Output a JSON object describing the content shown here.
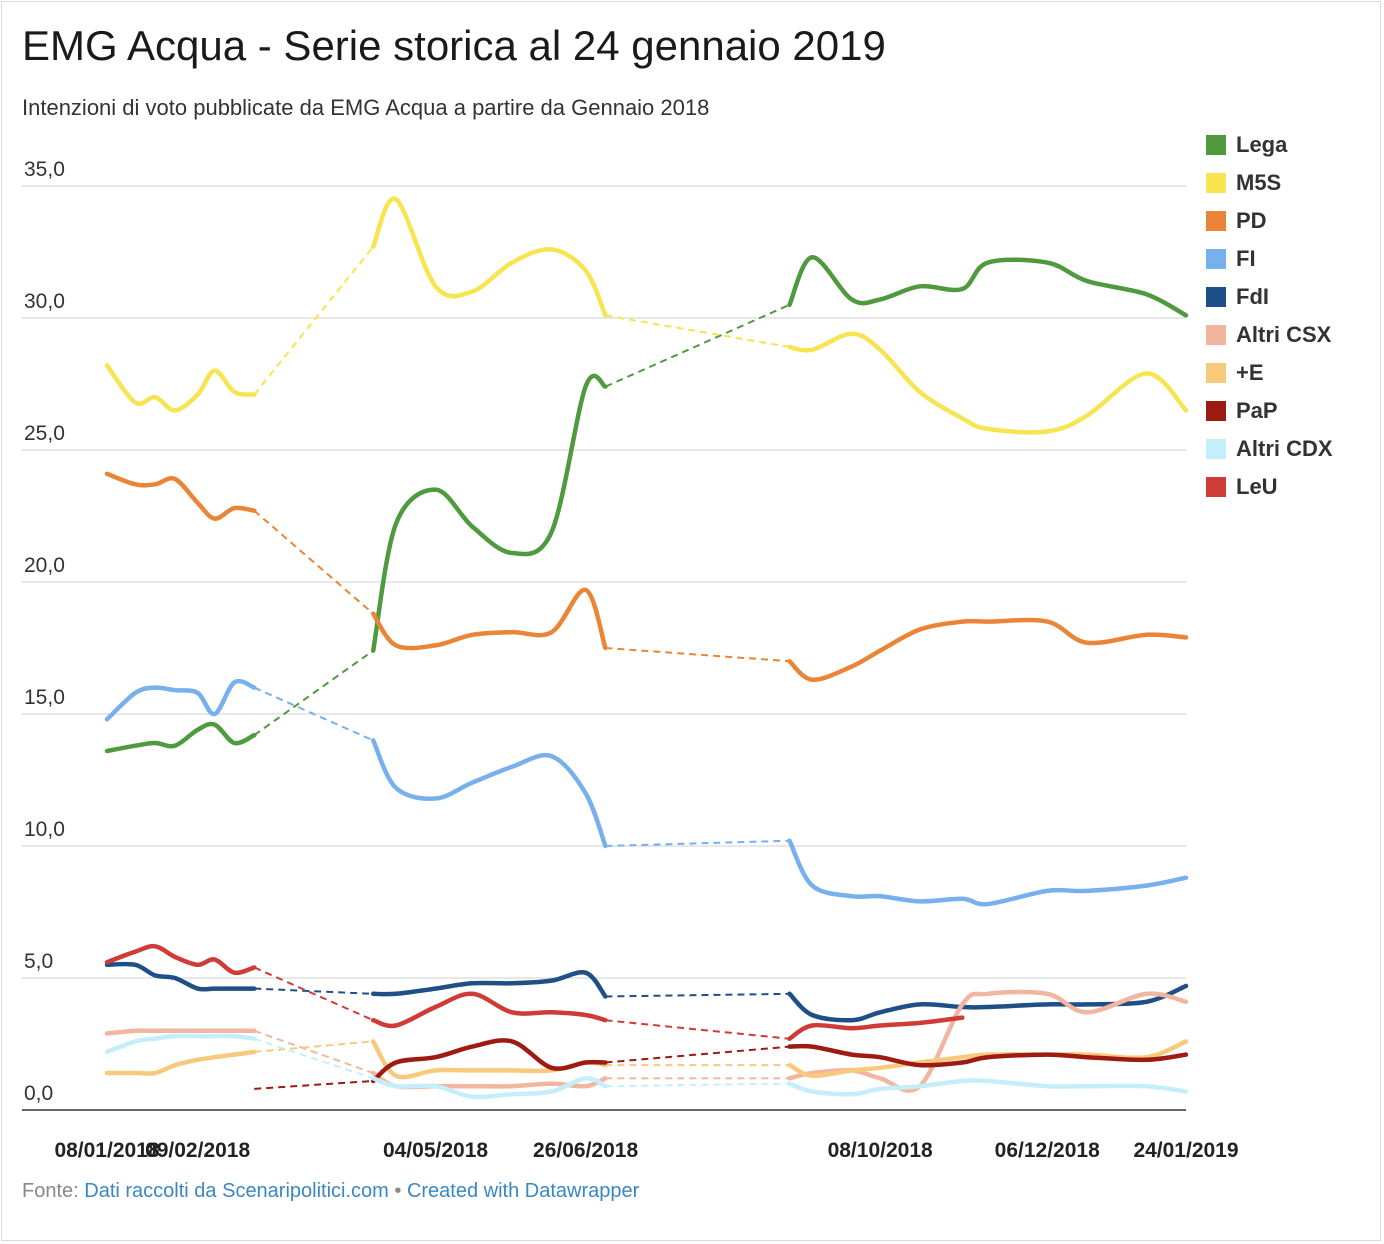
{
  "header": {
    "title": "EMG Acqua - Serie storica al 24 gennaio 2019",
    "subtitle": "Intenzioni di voto pubblicate da EMG Acqua a partire da Gennaio 2018"
  },
  "footer": {
    "prefix": "Fonte: ",
    "source_link": "Dati raccolti da Scenaripolitici.com",
    "separator": " • ",
    "credit_link": "Created with Datawrapper"
  },
  "chart_data": {
    "type": "line",
    "title": "EMG Acqua - Serie storica al 24 gennaio 2019",
    "subtitle": "Intenzioni di voto pubblicate da EMG Acqua a partire da Gennaio 2018",
    "xlabel": "",
    "ylabel": "",
    "ylim": [
      0,
      35
    ],
    "yticks": [
      "0,0",
      "5,0",
      "10,0",
      "15,0",
      "20,0",
      "25,0",
      "30,0",
      "35,0"
    ],
    "xtick_labels": [
      "08/01/2018",
      "09/02/2018",
      "04/05/2018",
      "26/06/2018",
      "08/10/2018",
      "06/12/2018",
      "24/01/2019"
    ],
    "legend_position": "right",
    "grid": true,
    "x": [
      "08/01/2018",
      "18/01/2018",
      "25/01/2018",
      "01/02/2018",
      "09/02/2018",
      "15/02/2018",
      "22/02/2018",
      "01/03/2018",
      "12/04/2018",
      "20/04/2018",
      "04/05/2018",
      "17/05/2018",
      "31/05/2018",
      "14/06/2018",
      "26/06/2018",
      "03/07/2018",
      "06/09/2018",
      "14/09/2018",
      "28/09/2018",
      "08/10/2018",
      "22/10/2018",
      "06/11/2018",
      "15/11/2018",
      "06/12/2018",
      "20/12/2018",
      "10/01/2019",
      "24/01/2019"
    ],
    "series": [
      {
        "name": "Lega",
        "color": "#4f9a3e",
        "values": [
          13.6,
          13.8,
          13.9,
          13.8,
          14.4,
          14.6,
          13.9,
          14.2,
          17.4,
          22.2,
          23.5,
          22.1,
          21.1,
          21.9,
          27.4,
          27.4,
          30.5,
          32.3,
          30.7,
          30.7,
          31.2,
          31.1,
          32.1,
          32.1,
          31.4,
          30.9,
          30.1
        ]
      },
      {
        "name": "M5S",
        "color": "#f7e451",
        "values": [
          28.2,
          26.8,
          27.0,
          26.5,
          27.1,
          28.0,
          27.2,
          27.1,
          32.7,
          34.5,
          31.2,
          31.0,
          32.1,
          32.6,
          31.8,
          30.1,
          28.9,
          28.8,
          29.4,
          28.8,
          27.2,
          26.2,
          25.8,
          25.7,
          26.3,
          27.9,
          26.5
        ]
      },
      {
        "name": "PD",
        "color": "#ea8537",
        "values": [
          24.1,
          23.7,
          23.7,
          23.9,
          23.0,
          22.4,
          22.8,
          22.7,
          18.8,
          17.6,
          17.6,
          18.0,
          18.1,
          18.1,
          19.7,
          17.5,
          17.0,
          16.3,
          16.8,
          17.4,
          18.2,
          18.5,
          18.5,
          18.5,
          17.7,
          18.0,
          17.9
        ]
      },
      {
        "name": "FI",
        "color": "#77b0ec",
        "values": [
          14.8,
          15.8,
          16.0,
          15.9,
          15.8,
          15.0,
          16.2,
          16.0,
          14.0,
          12.2,
          11.8,
          12.4,
          13.0,
          13.4,
          12.0,
          10.0,
          10.2,
          8.5,
          8.1,
          8.1,
          7.9,
          8.0,
          7.8,
          8.3,
          8.3,
          8.5,
          8.8
        ]
      },
      {
        "name": "FdI",
        "color": "#1f4f87",
        "values": [
          5.5,
          5.5,
          5.1,
          5.0,
          4.6,
          4.6,
          4.6,
          4.6,
          4.4,
          4.4,
          4.6,
          4.8,
          4.8,
          4.9,
          5.2,
          4.3,
          4.4,
          3.6,
          3.4,
          3.7,
          4.0,
          3.9,
          3.9,
          4.0,
          4.0,
          4.1,
          4.7
        ]
      },
      {
        "name": "Altri CSX",
        "color": "#f2b6a0",
        "values": [
          2.9,
          3.0,
          3.0,
          3.0,
          3.0,
          3.0,
          3.0,
          3.0,
          1.4,
          0.9,
          0.9,
          0.9,
          0.9,
          1.0,
          0.9,
          1.2,
          1.2,
          1.4,
          1.5,
          1.2,
          0.9,
          4.0,
          4.4,
          4.4,
          3.7,
          4.4,
          4.1
        ]
      },
      {
        "name": "+E",
        "color": "#f8c97d",
        "values": [
          1.4,
          1.4,
          1.4,
          1.7,
          1.9,
          2.0,
          2.1,
          2.2,
          2.6,
          1.3,
          1.5,
          1.5,
          1.5,
          1.5,
          1.8,
          1.7,
          1.7,
          1.3,
          1.5,
          1.6,
          1.8,
          2.0,
          2.1,
          2.1,
          2.1,
          2.0,
          2.6
        ]
      },
      {
        "name": "PaP",
        "color": "#9e1b14",
        "values": [
          null,
          null,
          null,
          null,
          null,
          null,
          null,
          0.8,
          1.1,
          1.8,
          2.0,
          2.4,
          2.6,
          1.6,
          1.8,
          1.8,
          2.4,
          2.4,
          2.1,
          2.0,
          1.7,
          1.8,
          2.0,
          2.1,
          2.0,
          1.9,
          2.1
        ]
      },
      {
        "name": "Altri CDX",
        "color": "#c4eff9",
        "values": [
          2.2,
          2.6,
          2.7,
          2.8,
          2.8,
          2.8,
          2.8,
          2.7,
          1.2,
          0.9,
          0.9,
          0.5,
          0.6,
          0.7,
          1.2,
          0.9,
          1.0,
          0.7,
          0.6,
          0.8,
          0.9,
          1.1,
          1.1,
          0.9,
          0.9,
          0.9,
          0.7
        ]
      },
      {
        "name": "LeU",
        "color": "#cf3c37",
        "values": [
          5.6,
          6.0,
          6.2,
          5.8,
          5.5,
          5.7,
          5.2,
          5.4,
          3.4,
          3.2,
          3.9,
          4.4,
          3.7,
          3.7,
          3.6,
          3.4,
          2.7,
          3.2,
          3.1,
          3.2,
          3.3,
          3.5,
          null,
          null,
          null,
          null,
          null
        ]
      }
    ]
  }
}
